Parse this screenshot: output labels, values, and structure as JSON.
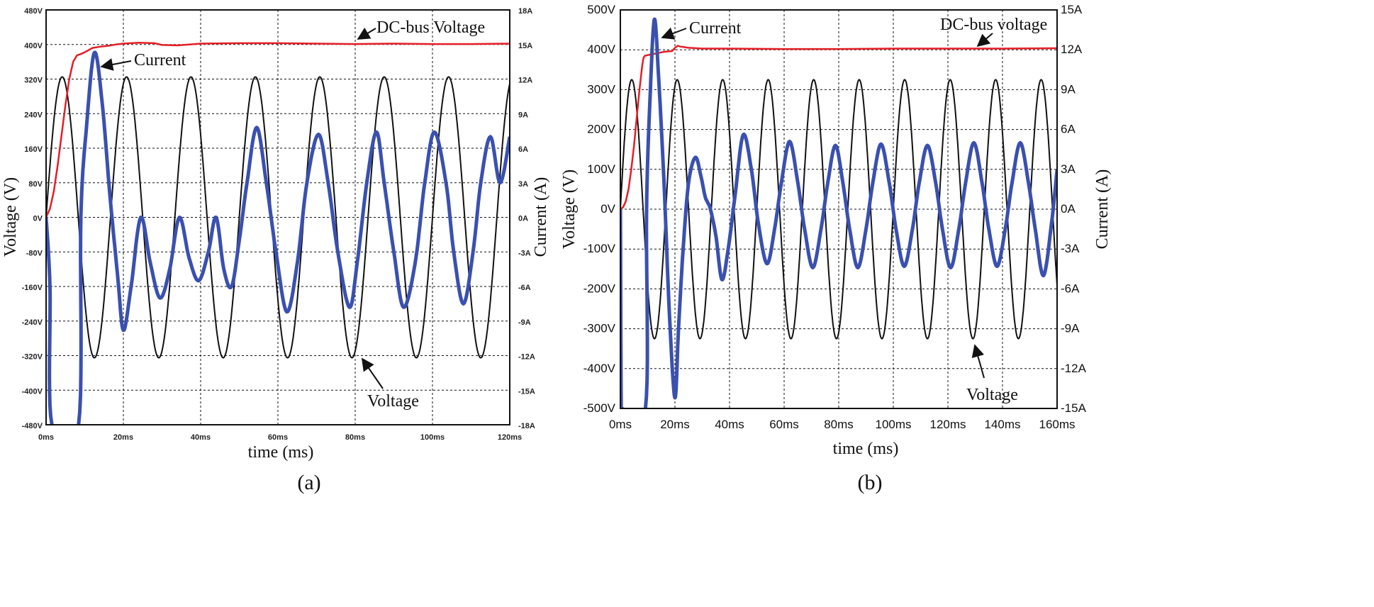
{
  "figure": {
    "captions": [
      "(a)",
      "(b)"
    ]
  },
  "chart_data": [
    {
      "type": "line",
      "panel": "(a)",
      "title": "",
      "xlabel": "time (ms)",
      "ylabel": "Voltage (V)",
      "y2label": "Current (A)",
      "xlim": [
        0,
        120
      ],
      "ylim": [
        -480,
        480
      ],
      "y2lim": [
        -18,
        18
      ],
      "grid": true,
      "xticks": [
        0,
        20,
        40,
        60,
        80,
        100,
        120
      ],
      "xtick_labels": [
        "0ms",
        "20ms",
        "40ms",
        "60ms",
        "80ms",
        "100ms",
        "120ms"
      ],
      "yticks": [
        480,
        400,
        320,
        240,
        160,
        80,
        0,
        -80,
        -160,
        -240,
        -320,
        -400,
        -480
      ],
      "ytick_labels": [
        "480V",
        "400V",
        "320V",
        "240V",
        "160V",
        "80V",
        "0V",
        "-80V",
        "-160V",
        "-240V",
        "-320V",
        "-400V",
        "-480V"
      ],
      "y2ticks": [
        18,
        15,
        12,
        9,
        6,
        3,
        0,
        -3,
        -6,
        -9,
        -12,
        -15,
        -18
      ],
      "y2tick_labels": [
        "18A",
        "15A",
        "12A",
        "9A",
        "6A",
        "3A",
        "0A",
        "-3A",
        "-6A",
        "-9A",
        "-12A",
        "-15A",
        "-18A"
      ],
      "series": [
        {
          "name": "DC-bus Voltage",
          "axis": "left",
          "color": "#e41e26",
          "x": [
            0,
            1,
            2,
            3,
            4,
            5,
            6,
            7,
            8,
            9,
            10,
            12,
            14,
            16,
            18,
            20,
            24,
            28,
            30,
            34,
            40,
            50,
            60,
            70,
            80,
            90,
            100,
            110,
            120
          ],
          "y": [
            0,
            20,
            60,
            120,
            190,
            260,
            320,
            360,
            375,
            378,
            382,
            392,
            395,
            397,
            400,
            402,
            404,
            403,
            399,
            398,
            402,
            403,
            403,
            402,
            401,
            402,
            401,
            401,
            402
          ]
        },
        {
          "name": "Voltage",
          "axis": "left",
          "color": "#111111",
          "amplitude": 325,
          "frequency_hz": 60,
          "phase_deg": 0,
          "x": [
            0,
            4.17,
            8.33,
            12.5,
            16.67,
            20.83,
            25,
            29.17,
            33.33,
            37.5,
            41.67,
            45.83,
            50,
            54.17,
            58.33,
            62.5,
            66.67,
            70.83,
            75,
            79.17,
            83.33,
            87.5,
            91.67,
            95.83,
            100,
            104.17,
            108.33,
            112.5,
            116.67,
            120
          ],
          "y": [
            0,
            325,
            0,
            -325,
            0,
            325,
            0,
            -325,
            0,
            325,
            0,
            -325,
            0,
            325,
            0,
            -325,
            0,
            325,
            0,
            -325,
            0,
            325,
            0,
            -325,
            0,
            325,
            0,
            -325,
            0,
            325
          ]
        },
        {
          "name": "Current",
          "axis": "right",
          "color": "#3a50b0",
          "x": [
            0,
            1,
            1.5,
            8.4,
            9,
            10.5,
            12.5,
            14.5,
            16.5,
            18.5,
            20,
            22,
            24.5,
            27,
            29.5,
            32,
            34.5,
            37,
            39.5,
            42,
            44,
            46,
            48,
            50,
            52,
            54.5,
            57,
            59.5,
            62.3,
            65,
            67.5,
            70.5,
            73,
            75.5,
            78.5,
            80.5,
            83,
            85.5,
            87.5,
            90,
            92.5,
            95.5,
            98,
            100.5,
            103.5,
            105.5,
            108,
            110.5,
            112.5,
            115,
            117.5,
            120
          ],
          "y": [
            0,
            -6,
            -18,
            -18,
            0,
            8,
            14.3,
            10,
            2,
            -5,
            -9.8,
            -6,
            0,
            -4,
            -7,
            -4.5,
            0,
            -3.5,
            -5.5,
            -3,
            0,
            -4.5,
            -6,
            -2,
            3,
            7.8,
            3,
            -3,
            -8.2,
            -4,
            3,
            7.2,
            3,
            -3,
            -7.8,
            -4,
            3,
            7.4,
            3,
            -3,
            -7.8,
            -4,
            3,
            7.4,
            3,
            -3,
            -7.5,
            -3,
            3,
            7,
            3,
            7
          ]
        }
      ],
      "annotations": [
        "DC-bus Voltage",
        "Current",
        "Voltage"
      ]
    },
    {
      "type": "line",
      "panel": "(b)",
      "title": "",
      "xlabel": "time (ms)",
      "ylabel": "Voltage (V)",
      "y2label": "Current (A)",
      "xlim": [
        0,
        160
      ],
      "ylim": [
        -500,
        500
      ],
      "y2lim": [
        -15,
        15
      ],
      "grid": true,
      "xticks": [
        0,
        20,
        40,
        60,
        80,
        100,
        120,
        140,
        160
      ],
      "xtick_labels": [
        "0ms",
        "20ms",
        "40ms",
        "60ms",
        "80ms",
        "100ms",
        "120ms",
        "140ms",
        "160ms"
      ],
      "yticks": [
        500,
        400,
        300,
        200,
        100,
        0,
        -100,
        -200,
        -300,
        -400,
        -500
      ],
      "ytick_labels": [
        "500V",
        "400V",
        "300V",
        "200V",
        "100V",
        "0V",
        "-100V",
        "-200V",
        "-300V",
        "-400V",
        "-500V"
      ],
      "y2ticks": [
        15,
        12,
        9,
        6,
        3,
        0,
        -3,
        -6,
        -9,
        -12,
        -15
      ],
      "y2tick_labels": [
        "15A",
        "12A",
        "9A",
        "6A",
        "3A",
        "0A",
        "-3A",
        "-6A",
        "-9A",
        "-12A",
        "-15A"
      ],
      "series": [
        {
          "name": "DC-bus voltage",
          "axis": "left",
          "color": "#e41e26",
          "x": [
            0,
            1,
            2,
            3,
            4,
            5,
            6,
            7,
            8,
            8.5,
            9,
            11,
            14,
            16,
            18,
            19,
            20,
            21,
            22,
            25,
            30,
            40,
            60,
            80,
            100,
            120,
            140,
            160
          ],
          "y": [
            0,
            5,
            20,
            50,
            100,
            160,
            230,
            300,
            360,
            380,
            385,
            388,
            392,
            395,
            396,
            397,
            405,
            410,
            408,
            405,
            403,
            403,
            402,
            402,
            403,
            403,
            403,
            404
          ]
        },
        {
          "name": "Voltage",
          "axis": "left",
          "color": "#111111",
          "amplitude": 325,
          "frequency_hz": 60,
          "phase_deg": 0,
          "x": [
            0,
            4.17,
            8.33,
            12.5,
            16.67,
            20.83,
            25,
            29.17,
            33.33,
            37.5,
            41.67,
            45.83,
            50,
            54.17,
            58.33,
            62.5,
            66.67,
            70.83,
            75,
            79.17,
            83.33,
            87.5,
            91.67,
            95.83,
            100,
            104.17,
            108.33,
            112.5,
            116.67,
            120.83,
            125,
            129.17,
            133.33,
            137.5,
            141.67,
            145.83,
            150,
            154.17,
            158.33,
            160
          ],
          "y": [
            0,
            325,
            0,
            -325,
            0,
            325,
            0,
            -325,
            0,
            325,
            0,
            -325,
            0,
            325,
            0,
            -325,
            0,
            325,
            0,
            -325,
            0,
            325,
            0,
            -325,
            0,
            325,
            0,
            -325,
            0,
            325,
            0,
            -325,
            0,
            325,
            0,
            -325,
            0,
            325,
            0,
            -160
          ]
        },
        {
          "name": "Current",
          "axis": "right",
          "color": "#3a50b0",
          "x": [
            0,
            0.3,
            0.6,
            9.2,
            9.6,
            11,
            12.5,
            14,
            16,
            18,
            20,
            21.3,
            23,
            25,
            27.5,
            29.5,
            31,
            32,
            33,
            35,
            37.2,
            39.5,
            42,
            45,
            48,
            50.5,
            53.7,
            56.5,
            59,
            62,
            65,
            67.5,
            70.5,
            73.5,
            76,
            78.8,
            81.5,
            84,
            87,
            90,
            92.5,
            95.5,
            98.5,
            101,
            104,
            107,
            109.5,
            112.5,
            115.5,
            118,
            121,
            124,
            126.5,
            129.5,
            132.5,
            135,
            138,
            141,
            143.5,
            146.5,
            149.5,
            152,
            155,
            158,
            160
          ],
          "y": [
            0,
            -15,
            -15,
            -15,
            0,
            9,
            14.3,
            10,
            2,
            -8,
            -14.2,
            -9,
            -3,
            2,
            3.9,
            2.5,
            1,
            0.5,
            0,
            -2,
            -5.3,
            -3,
            1,
            5.6,
            3,
            -1,
            -4.1,
            -1.5,
            2,
            5.1,
            2,
            -1.5,
            -4.4,
            -1.5,
            2,
            4.8,
            2,
            -1.5,
            -4.4,
            -1.5,
            2,
            4.9,
            2,
            -1.5,
            -4.3,
            -1.5,
            2,
            4.8,
            2,
            -1.5,
            -4.4,
            -1.5,
            2,
            5,
            2,
            -1.5,
            -4.3,
            -1.5,
            2,
            5,
            2,
            -1.5,
            -5,
            -1,
            3
          ]
        }
      ],
      "annotations": [
        "Current",
        "DC-bus voltage",
        "Voltage"
      ]
    }
  ]
}
